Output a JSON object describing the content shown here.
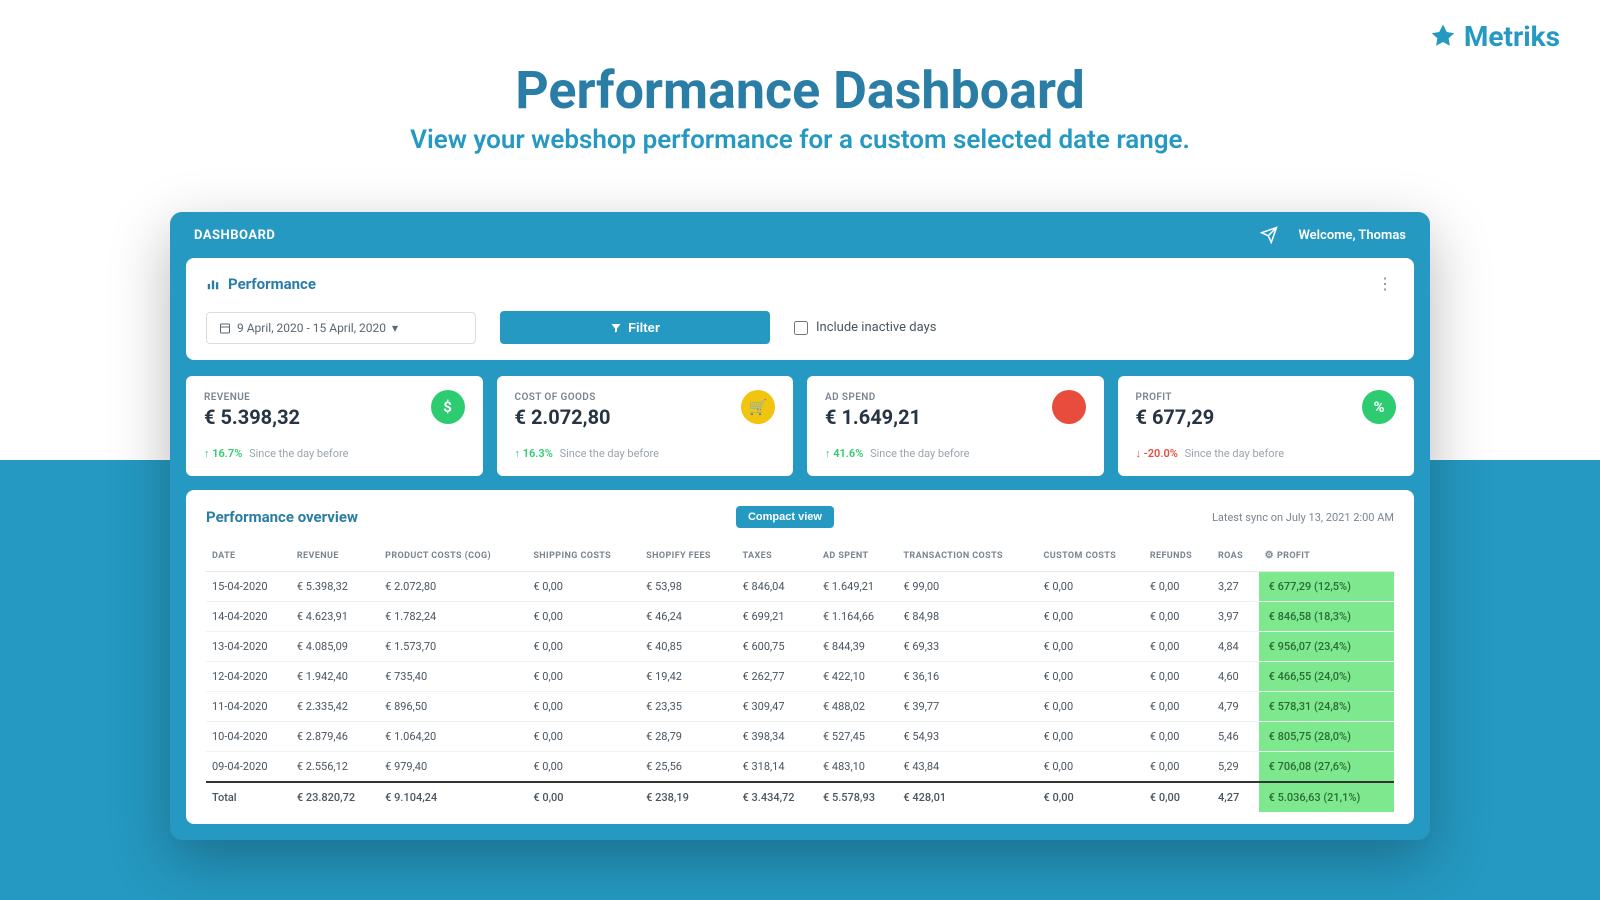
{
  "brand": {
    "name": "Metriks"
  },
  "hero": {
    "title": "Performance Dashboard",
    "subtitle": "View your webshop performance for a custom selected date range."
  },
  "colors": {
    "primary": "#2599c2",
    "headline": "#2a7ea5",
    "metric_icons": {
      "revenue": "#2ecc71",
      "cog": "#f1c40f",
      "adspend": "#e74c3c",
      "profit": "#2ecc71"
    },
    "profit_cell_bg": "#7de88e"
  },
  "app": {
    "header_title": "DASHBOARD",
    "welcome": "Welcome, Thomas"
  },
  "performance": {
    "section_title": "Performance",
    "date_range": "9 April, 2020 - 15 April, 2020",
    "filter_label": "Filter",
    "checkbox_label": "Include inactive days"
  },
  "metrics": [
    {
      "label": "REVENUE",
      "value": "€ 5.398,32",
      "change_pct": "16.7%",
      "change_dir": "up",
      "since": "Since the day before",
      "icon_color": "#2ecc71",
      "icon_glyph": "$"
    },
    {
      "label": "COST OF GOODS",
      "value": "€ 2.072,80",
      "change_pct": "16.3%",
      "change_dir": "up",
      "since": "Since the day before",
      "icon_color": "#f1c40f",
      "icon_glyph": "🛒"
    },
    {
      "label": "AD SPEND",
      "value": "€ 1.649,21",
      "change_pct": "41.6%",
      "change_dir": "up",
      "since": "Since the day before",
      "icon_color": "#e74c3c",
      "icon_glyph": ""
    },
    {
      "label": "PROFIT",
      "value": "€ 677,29",
      "change_pct": "-20.0%",
      "change_dir": "down",
      "since": "Since the day before",
      "icon_color": "#2ecc71",
      "icon_glyph": "%"
    }
  ],
  "overview": {
    "title": "Performance overview",
    "compact_label": "Compact view",
    "sync_text": "Latest sync on July 13, 2021 2:00 AM",
    "columns": [
      "DATE",
      "REVENUE",
      "PRODUCT COSTS (COG)",
      "SHIPPING COSTS",
      "SHOPIFY FEES",
      "TAXES",
      "AD SPENT",
      "TRANSACTION COSTS",
      "CUSTOM COSTS",
      "REFUNDS",
      "ROAS",
      "PROFIT"
    ],
    "rows": [
      [
        "15-04-2020",
        "€ 5.398,32",
        "€ 2.072,80",
        "€ 0,00",
        "€ 53,98",
        "€ 846,04",
        "€ 1.649,21",
        "€ 99,00",
        "€ 0,00",
        "€ 0,00",
        "3,27",
        "€ 677,29 (12,5%)"
      ],
      [
        "14-04-2020",
        "€ 4.623,91",
        "€ 1.782,24",
        "€ 0,00",
        "€ 46,24",
        "€ 699,21",
        "€ 1.164,66",
        "€ 84,98",
        "€ 0,00",
        "€ 0,00",
        "3,97",
        "€ 846,58 (18,3%)"
      ],
      [
        "13-04-2020",
        "€ 4.085,09",
        "€ 1.573,70",
        "€ 0,00",
        "€ 40,85",
        "€ 600,75",
        "€ 844,39",
        "€ 69,33",
        "€ 0,00",
        "€ 0,00",
        "4,84",
        "€ 956,07 (23,4%)"
      ],
      [
        "12-04-2020",
        "€ 1.942,40",
        "€ 735,40",
        "€ 0,00",
        "€ 19,42",
        "€ 262,77",
        "€ 422,10",
        "€ 36,16",
        "€ 0,00",
        "€ 0,00",
        "4,60",
        "€ 466,55 (24,0%)"
      ],
      [
        "11-04-2020",
        "€ 2.335,42",
        "€ 896,50",
        "€ 0,00",
        "€ 23,35",
        "€ 309,47",
        "€ 488,02",
        "€ 39,77",
        "€ 0,00",
        "€ 0,00",
        "4,79",
        "€ 578,31 (24,8%)"
      ],
      [
        "10-04-2020",
        "€ 2.879,46",
        "€ 1.064,20",
        "€ 0,00",
        "€ 28,79",
        "€ 398,34",
        "€ 527,45",
        "€ 54,93",
        "€ 0,00",
        "€ 0,00",
        "5,46",
        "€ 805,75 (28,0%)"
      ],
      [
        "09-04-2020",
        "€ 2.556,12",
        "€ 979,40",
        "€ 0,00",
        "€ 25,56",
        "€ 318,14",
        "€ 483,10",
        "€ 43,84",
        "€ 0,00",
        "€ 0,00",
        "5,29",
        "€ 706,08 (27,6%)"
      ]
    ],
    "total": [
      "Total",
      "€ 23.820,72",
      "€ 9.104,24",
      "€ 0,00",
      "€ 238,19",
      "€ 3.434,72",
      "€ 5.578,93",
      "€ 428,01",
      "€ 0,00",
      "€ 0,00",
      "4,27",
      "€ 5.036,63 (21,1%)"
    ]
  }
}
